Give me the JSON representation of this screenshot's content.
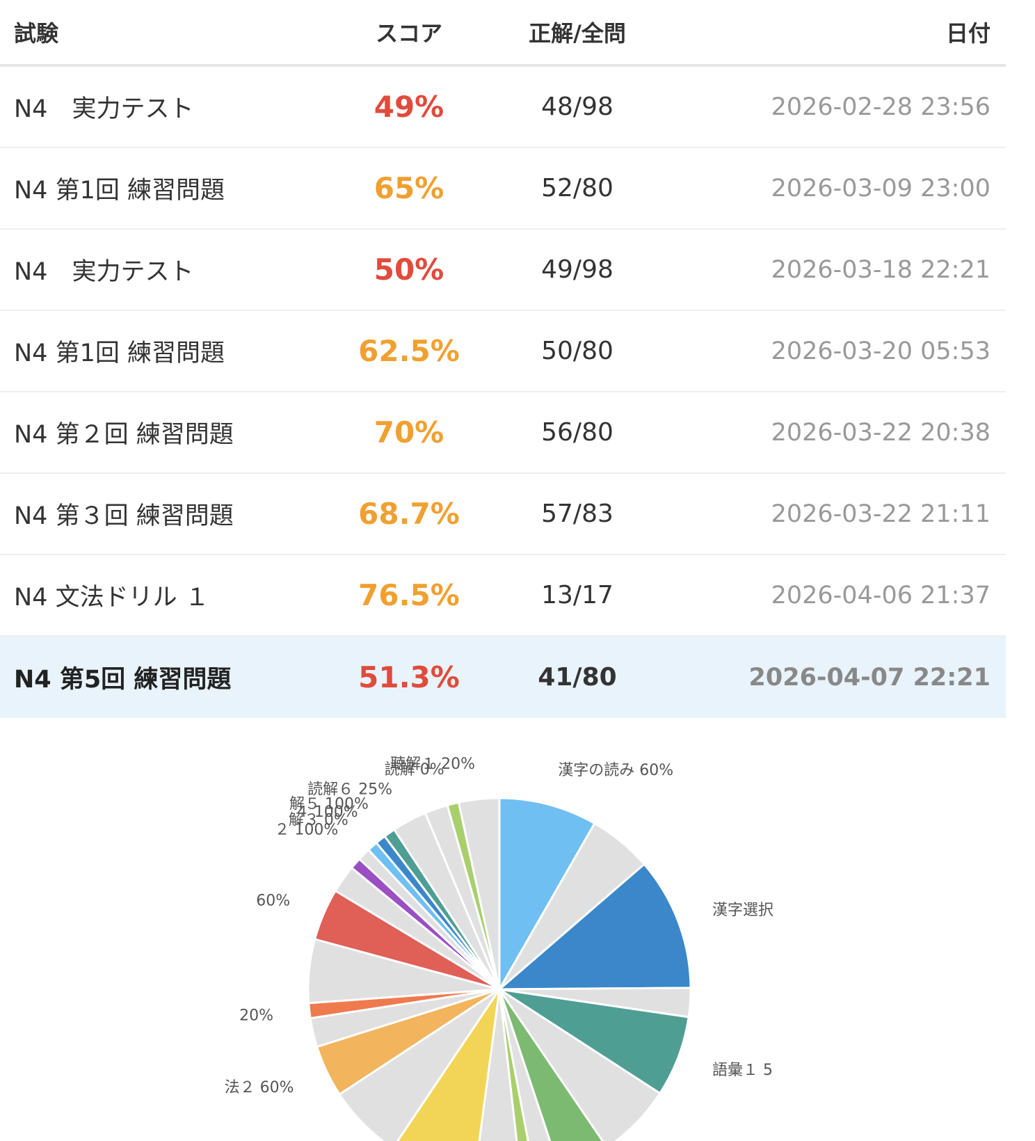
{
  "table": {
    "headers": {
      "exam": "試験",
      "score": "スコア",
      "correct_total": "正解/全問",
      "date": "日付"
    },
    "rows": [
      {
        "name": "N4　実力テスト",
        "score": "49%",
        "score_color": "#e04b3c",
        "correct_total": "48/98",
        "date": "2026-02-28 23:56"
      },
      {
        "name": "N4 第1回 練習問題",
        "score": "65%",
        "score_color": "#f0a030",
        "correct_total": "52/80",
        "date": "2026-03-09 23:00"
      },
      {
        "name": "N4　実力テスト",
        "score": "50%",
        "score_color": "#e04b3c",
        "correct_total": "49/98",
        "date": "2026-03-18 22:21"
      },
      {
        "name": "N4 第1回 練習問題",
        "score": "62.5%",
        "score_color": "#f0a030",
        "correct_total": "50/80",
        "date": "2026-03-20 05:53"
      },
      {
        "name": "N4 第２回 練習問題",
        "score": "70%",
        "score_color": "#f0a030",
        "correct_total": "56/80",
        "date": "2026-03-22 20:38"
      },
      {
        "name": "N4 第３回 練習問題",
        "score": "68.7%",
        "score_color": "#f0a030",
        "correct_total": "57/83",
        "date": "2026-03-22 21:11"
      },
      {
        "name": "N4 文法ドリル １",
        "score": "76.5%",
        "score_color": "#f0a030",
        "correct_total": "13/17",
        "date": "2026-04-06 21:37"
      },
      {
        "name": "N4 第5回 練習問題",
        "score": "51.3%",
        "score_color": "#e04b3c",
        "correct_total": "41/80",
        "date": "2026-04-07 22:21"
      }
    ]
  },
  "chart_data": {
    "type": "pie",
    "note_colors": {
      "unanswered_wrong": "#e0e0e0"
    },
    "slices": [
      {
        "label": "漢字の読み 60%",
        "value": 8.5,
        "color": "#6fbff2"
      },
      {
        "label": "",
        "value": 5.5,
        "color": "#e0e0e0"
      },
      {
        "label": "漢字選択",
        "value": 11.5,
        "color": "#3b87c9"
      },
      {
        "label": "",
        "value": 2.5,
        "color": "#e0e0e0"
      },
      {
        "label": "語彙１ 5",
        "value": 7.0,
        "color": "#4e9e94"
      },
      {
        "label": "",
        "value": 6.5,
        "color": "#e0e0e0"
      },
      {
        "label": "",
        "value": 4.5,
        "color": "#7cba72"
      },
      {
        "label": "",
        "value": 2.2,
        "color": "#e0e0e0"
      },
      {
        "label": "",
        "value": 1.2,
        "color": "#a9cf6d"
      },
      {
        "label": "",
        "value": 4.0,
        "color": "#e0e0e0"
      },
      {
        "label": "",
        "value": 7.5,
        "color": "#f2d557"
      },
      {
        "label": "",
        "value": 6.5,
        "color": "#e0e0e0"
      },
      {
        "label": "法２ 60%",
        "value": 4.5,
        "color": "#f2b45c"
      },
      {
        "label": "",
        "value": 2.5,
        "color": "#e0e0e0"
      },
      {
        "label": "20%",
        "value": 1.3,
        "color": "#ef7a4e"
      },
      {
        "label": "",
        "value": 5.5,
        "color": "#e0e0e0"
      },
      {
        "label": "60%",
        "value": 4.5,
        "color": "#e05f56"
      },
      {
        "label": "",
        "value": 2.4,
        "color": "#e0e0e0"
      },
      {
        "label": "",
        "value": 1.0,
        "color": "#9b4fc4"
      },
      {
        "label": "２ 100%",
        "value": 1.1,
        "color": "#e0e0e0"
      },
      {
        "label": "解３ 0%",
        "value": 0.9,
        "color": "#6fbff2"
      },
      {
        "label": "４ 100%",
        "value": 0.9,
        "color": "#3b87c9"
      },
      {
        "label": "解５ 100%",
        "value": 1.0,
        "color": "#4e9e94"
      },
      {
        "label": "読解６ 25%",
        "value": 3.0,
        "color": "#e0e0e0"
      },
      {
        "label": "",
        "value": 2.0,
        "color": "#e0e0e0"
      },
      {
        "label": "読解 0%",
        "value": 1.0,
        "color": "#a9cf6d"
      },
      {
        "label": "聴解１ 20%",
        "value": 3.5,
        "color": "#e0e0e0"
      }
    ]
  }
}
